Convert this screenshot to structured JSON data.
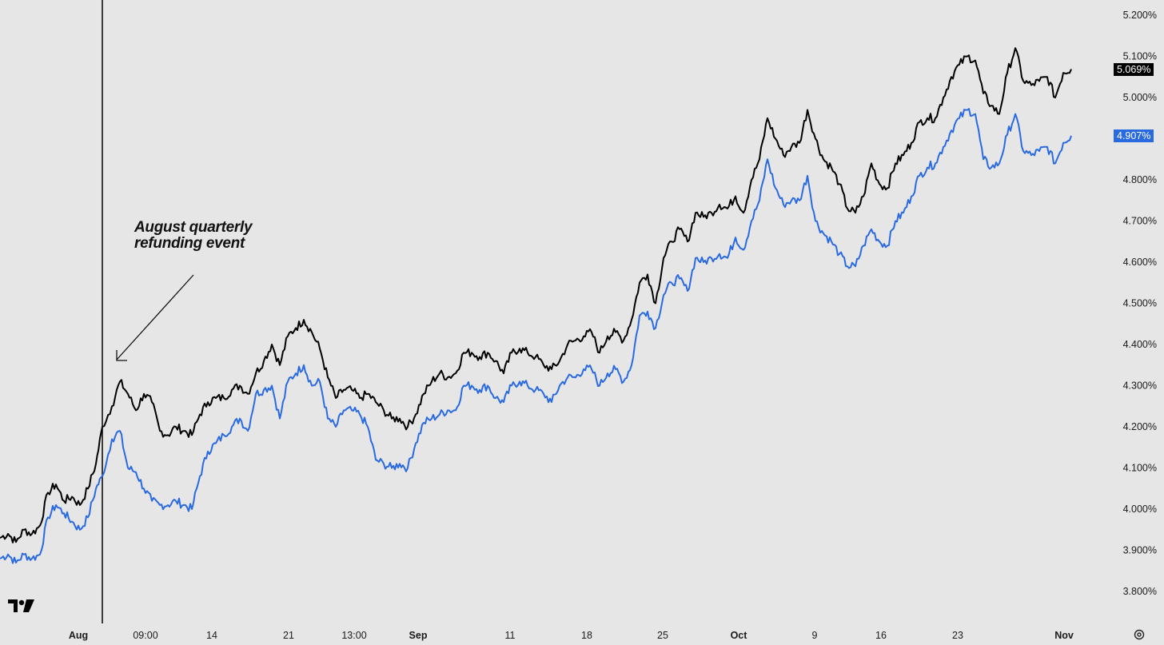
{
  "chart_data": {
    "type": "line",
    "title": "",
    "xlabel": "",
    "ylabel": "",
    "ylim": [
      3.77,
      5.235
    ],
    "y_ticks": [
      "5.200%",
      "5.100%",
      "5.000%",
      "4.800%",
      "4.700%",
      "4.600%",
      "4.500%",
      "4.400%",
      "4.300%",
      "4.200%",
      "4.100%",
      "4.000%",
      "3.900%",
      "3.800%"
    ],
    "x_ticks": [
      {
        "label": "Aug",
        "bold": true
      },
      {
        "label": "09:00",
        "bold": false
      },
      {
        "label": "14",
        "bold": false
      },
      {
        "label": "21",
        "bold": false
      },
      {
        "label": "13:00",
        "bold": false
      },
      {
        "label": "Sep",
        "bold": true
      },
      {
        "label": "11",
        "bold": false
      },
      {
        "label": "18",
        "bold": false
      },
      {
        "label": "25",
        "bold": false
      },
      {
        "label": "Oct",
        "bold": true
      },
      {
        "label": "9",
        "bold": false
      },
      {
        "label": "16",
        "bold": false
      },
      {
        "label": "23",
        "bold": false
      },
      {
        "label": "Nov",
        "bold": true
      }
    ],
    "series": [
      {
        "color": "#000000",
        "last_value_label": "5.069%",
        "x": [
          0,
          10,
          20,
          30,
          40,
          50,
          60,
          70,
          80,
          90,
          100,
          110,
          120,
          128,
          140,
          150,
          160,
          170,
          180,
          190,
          200,
          210,
          220,
          230,
          240,
          250,
          260,
          270,
          280,
          290,
          300,
          310,
          320,
          330,
          340,
          350,
          360,
          370,
          380,
          390,
          400,
          410,
          420,
          430,
          440,
          450,
          460,
          470,
          480,
          490,
          500,
          510,
          520,
          530,
          540,
          550,
          560,
          570,
          580,
          590,
          600,
          610,
          620,
          630,
          640,
          650,
          660,
          670,
          680,
          690,
          700,
          710,
          720,
          730,
          740,
          750,
          760,
          770,
          780,
          790,
          800,
          810,
          820,
          830,
          840,
          850,
          860,
          870,
          880,
          890,
          900,
          910,
          920,
          930,
          940,
          950,
          960,
          970,
          980,
          990,
          1000,
          1010,
          1020,
          1030,
          1040,
          1050,
          1060,
          1070,
          1080,
          1090,
          1100,
          1110,
          1120,
          1130,
          1140,
          1150,
          1160,
          1170,
          1180,
          1190,
          1200,
          1210,
          1220,
          1230,
          1240,
          1250,
          1260,
          1270,
          1280,
          1290,
          1300,
          1310,
          1320,
          1330,
          1340
        ],
        "values": [
          3.93,
          3.94,
          3.92,
          3.95,
          3.94,
          3.96,
          4.04,
          4.06,
          4.02,
          4.03,
          4.01,
          4.05,
          4.11,
          4.2,
          4.25,
          4.31,
          4.28,
          4.24,
          4.28,
          4.26,
          4.19,
          4.18,
          4.2,
          4.19,
          4.18,
          4.23,
          4.26,
          4.27,
          4.27,
          4.29,
          4.3,
          4.28,
          4.33,
          4.36,
          4.4,
          4.35,
          4.42,
          4.44,
          4.46,
          4.43,
          4.39,
          4.32,
          4.27,
          4.29,
          4.29,
          4.27,
          4.28,
          4.26,
          4.24,
          4.22,
          4.22,
          4.2,
          4.23,
          4.28,
          4.31,
          4.33,
          4.32,
          4.33,
          4.38,
          4.38,
          4.37,
          4.38,
          4.36,
          4.33,
          4.38,
          4.39,
          4.38,
          4.37,
          4.35,
          4.34,
          4.36,
          4.4,
          4.41,
          4.42,
          4.43,
          4.38,
          4.42,
          4.43,
          4.41,
          4.46,
          4.55,
          4.57,
          4.5,
          4.61,
          4.65,
          4.68,
          4.65,
          4.72,
          4.71,
          4.72,
          4.74,
          4.73,
          4.76,
          4.72,
          4.8,
          4.85,
          4.95,
          4.9,
          4.86,
          4.88,
          4.89,
          4.97,
          4.9,
          4.85,
          4.83,
          4.79,
          4.73,
          4.72,
          4.76,
          4.84,
          4.79,
          4.78,
          4.84,
          4.86,
          4.89,
          4.94,
          4.95,
          4.95,
          5.0,
          5.05,
          5.08,
          5.1,
          5.09,
          5.01,
          4.98,
          4.96,
          5.06,
          5.12,
          5.04,
          5.03,
          5.04,
          5.05,
          5.0,
          5.06,
          5.069
        ]
      },
      {
        "color": "#2a6ae0",
        "last_value_label": "4.907%",
        "x": [
          0,
          10,
          20,
          30,
          40,
          50,
          60,
          70,
          80,
          90,
          100,
          110,
          120,
          128,
          140,
          150,
          160,
          170,
          180,
          190,
          200,
          210,
          220,
          230,
          240,
          250,
          260,
          270,
          280,
          290,
          300,
          310,
          320,
          330,
          340,
          350,
          360,
          370,
          380,
          390,
          400,
          410,
          420,
          430,
          440,
          450,
          460,
          470,
          480,
          490,
          500,
          510,
          520,
          530,
          540,
          550,
          560,
          570,
          580,
          590,
          600,
          610,
          620,
          630,
          640,
          650,
          660,
          670,
          680,
          690,
          700,
          710,
          720,
          730,
          740,
          750,
          760,
          770,
          780,
          790,
          800,
          810,
          820,
          830,
          840,
          850,
          860,
          870,
          880,
          890,
          900,
          910,
          920,
          930,
          940,
          950,
          960,
          970,
          980,
          990,
          1000,
          1010,
          1020,
          1030,
          1040,
          1050,
          1060,
          1070,
          1080,
          1090,
          1100,
          1110,
          1120,
          1130,
          1140,
          1150,
          1160,
          1170,
          1180,
          1190,
          1200,
          1210,
          1220,
          1230,
          1240,
          1250,
          1260,
          1270,
          1280,
          1290,
          1300,
          1310,
          1320,
          1330,
          1340
        ],
        "values": [
          3.88,
          3.89,
          3.87,
          3.89,
          3.88,
          3.89,
          3.98,
          4.01,
          3.99,
          3.97,
          3.95,
          3.98,
          4.05,
          4.08,
          4.17,
          4.19,
          4.1,
          4.09,
          4.05,
          4.02,
          4.01,
          4.01,
          4.02,
          4.01,
          4.0,
          4.08,
          4.14,
          4.16,
          4.18,
          4.2,
          4.22,
          4.19,
          4.28,
          4.29,
          4.3,
          4.22,
          4.31,
          4.33,
          4.35,
          4.3,
          4.31,
          4.22,
          4.2,
          4.24,
          4.24,
          4.23,
          4.2,
          4.12,
          4.11,
          4.1,
          4.11,
          4.1,
          4.16,
          4.21,
          4.22,
          4.23,
          4.24,
          4.24,
          4.3,
          4.3,
          4.29,
          4.3,
          4.27,
          4.26,
          4.3,
          4.31,
          4.3,
          4.29,
          4.28,
          4.26,
          4.3,
          4.32,
          4.32,
          4.34,
          4.34,
          4.3,
          4.33,
          4.34,
          4.31,
          4.35,
          4.47,
          4.48,
          4.44,
          4.52,
          4.55,
          4.56,
          4.53,
          4.61,
          4.6,
          4.61,
          4.62,
          4.61,
          4.66,
          4.63,
          4.7,
          4.75,
          4.85,
          4.78,
          4.74,
          4.75,
          4.75,
          4.81,
          4.7,
          4.67,
          4.65,
          4.62,
          4.59,
          4.59,
          4.64,
          4.68,
          4.65,
          4.64,
          4.7,
          4.72,
          4.76,
          4.81,
          4.83,
          4.84,
          4.88,
          4.92,
          4.95,
          4.97,
          4.96,
          4.85,
          4.83,
          4.84,
          4.91,
          4.96,
          4.87,
          4.86,
          4.87,
          4.88,
          4.84,
          4.89,
          4.907
        ]
      }
    ],
    "annotation": "August quarterly\nrefunding event",
    "grid": false,
    "y_axis_position": "right"
  }
}
